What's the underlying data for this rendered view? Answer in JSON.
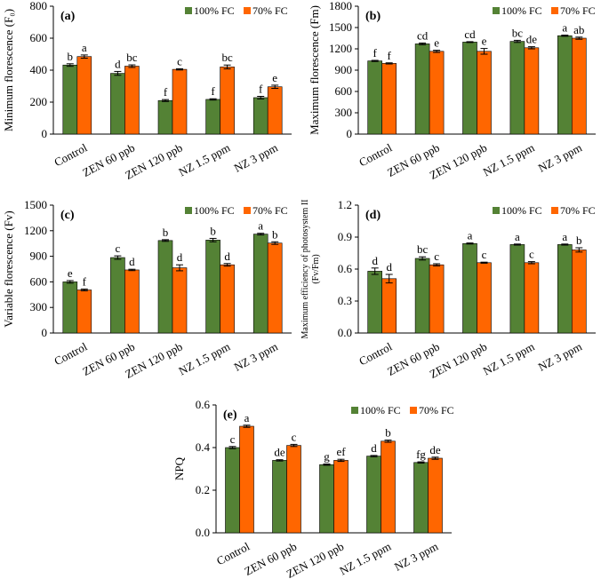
{
  "colors": {
    "fc100": "#548235",
    "fc70": "#ff6600"
  },
  "legend": [
    "100% FC",
    "70% FC"
  ],
  "chart_data": [
    {
      "panel": "(a)",
      "type": "bar",
      "ylabel": "Minimum florescence (F₀)",
      "ylim": [
        0,
        800
      ],
      "yticks": [
        0,
        200,
        400,
        600,
        800
      ],
      "categories": [
        "Control",
        "ZEN 60 ppb",
        "ZEN 120 ppb",
        "NZ 1.5 ppm",
        "NZ 3 ppm"
      ],
      "series": [
        {
          "name": "100% FC",
          "values": [
            432,
            380,
            210,
            217,
            228
          ],
          "errors": [
            8,
            12,
            6,
            4,
            8
          ],
          "letters": [
            "b",
            "d",
            "f",
            "f",
            "f"
          ]
        },
        {
          "name": "70% FC",
          "values": [
            485,
            425,
            405,
            420,
            296
          ],
          "errors": [
            10,
            8,
            4,
            12,
            10
          ],
          "letters": [
            "a",
            "bc",
            "c",
            "bc",
            "e"
          ]
        }
      ]
    },
    {
      "panel": "(b)",
      "type": "bar",
      "ylabel": "Maximum florescence (Fm)",
      "ylim": [
        0,
        1800
      ],
      "yticks": [
        0,
        300,
        600,
        900,
        1200,
        1500,
        1800
      ],
      "categories": [
        "Control",
        "ZEN 60 ppb",
        "ZEN 120 ppb",
        "NZ 1.5 ppm",
        "NZ 3 ppm"
      ],
      "series": [
        {
          "name": "100% FC",
          "values": [
            1030,
            1270,
            1295,
            1305,
            1385
          ],
          "errors": [
            8,
            12,
            6,
            15,
            8
          ],
          "letters": [
            "f",
            "cd",
            "cd",
            "bc",
            "a"
          ]
        },
        {
          "name": "70% FC",
          "values": [
            995,
            1165,
            1165,
            1215,
            1350
          ],
          "errors": [
            8,
            15,
            40,
            15,
            15
          ],
          "letters": [
            "f",
            "e",
            "e",
            "de",
            "ab"
          ]
        }
      ]
    },
    {
      "panel": "(c)",
      "type": "bar",
      "ylabel": "Variable florescence (Fv)",
      "ylim": [
        0,
        1500
      ],
      "yticks": [
        0,
        300,
        600,
        900,
        1200,
        1500
      ],
      "categories": [
        "Control",
        "ZEN 60 ppb",
        "ZEN 120 ppb",
        "NZ 1.5 ppm",
        "NZ 3 ppm"
      ],
      "series": [
        {
          "name": "100% FC",
          "values": [
            600,
            885,
            1085,
            1090,
            1160
          ],
          "errors": [
            15,
            20,
            10,
            20,
            10
          ],
          "letters": [
            "e",
            "c",
            "b",
            "b",
            "a"
          ]
        },
        {
          "name": "70% FC",
          "values": [
            505,
            740,
            765,
            800,
            1055
          ],
          "errors": [
            10,
            8,
            35,
            15,
            15
          ],
          "letters": [
            "f",
            "d",
            "d",
            "d",
            "b"
          ]
        }
      ]
    },
    {
      "panel": "(d)",
      "type": "bar",
      "ylabel": "Maximum efficiency of photosystem II",
      "ylabel2": "(Fv/Fm)",
      "ylim": [
        0,
        1.2
      ],
      "yticks": [
        0.0,
        0.3,
        0.6,
        0.9,
        1.2
      ],
      "categories": [
        "Control",
        "ZEN 60 ppb",
        "ZEN 120 ppb",
        "NZ 1.5 ppm",
        "NZ 3 ppm"
      ],
      "series": [
        {
          "name": "100% FC",
          "values": [
            0.58,
            0.7,
            0.84,
            0.83,
            0.83
          ],
          "errors": [
            0.03,
            0.015,
            0.005,
            0.005,
            0.005
          ],
          "letters": [
            "d",
            "bc",
            "a",
            "a",
            "a"
          ]
        },
        {
          "name": "70% FC",
          "values": [
            0.51,
            0.64,
            0.66,
            0.66,
            0.78
          ],
          "errors": [
            0.04,
            0.01,
            0.005,
            0.01,
            0.02
          ],
          "letters": [
            "d",
            "c",
            "c",
            "c",
            "b"
          ]
        }
      ]
    },
    {
      "panel": "(e)",
      "type": "bar",
      "ylabel": "NPQ",
      "ylim": [
        0,
        0.6
      ],
      "yticks": [
        0.0,
        0.2,
        0.4,
        0.6
      ],
      "categories": [
        "Control",
        "ZEN 60 ppb",
        "ZEN 120 ppb",
        "NZ 1.5 ppm",
        "NZ 3 ppm"
      ],
      "series": [
        {
          "name": "100% FC",
          "values": [
            0.4,
            0.34,
            0.32,
            0.36,
            0.33
          ],
          "errors": [
            0.005,
            0.003,
            0.003,
            0.003,
            0.003
          ],
          "letters": [
            "c",
            "de",
            "g",
            "d",
            "fg"
          ]
        },
        {
          "name": "70% FC",
          "values": [
            0.5,
            0.41,
            0.34,
            0.43,
            0.35
          ],
          "errors": [
            0.005,
            0.005,
            0.005,
            0.005,
            0.005
          ],
          "letters": [
            "a",
            "c",
            "ef",
            "b",
            "de"
          ]
        }
      ]
    }
  ]
}
